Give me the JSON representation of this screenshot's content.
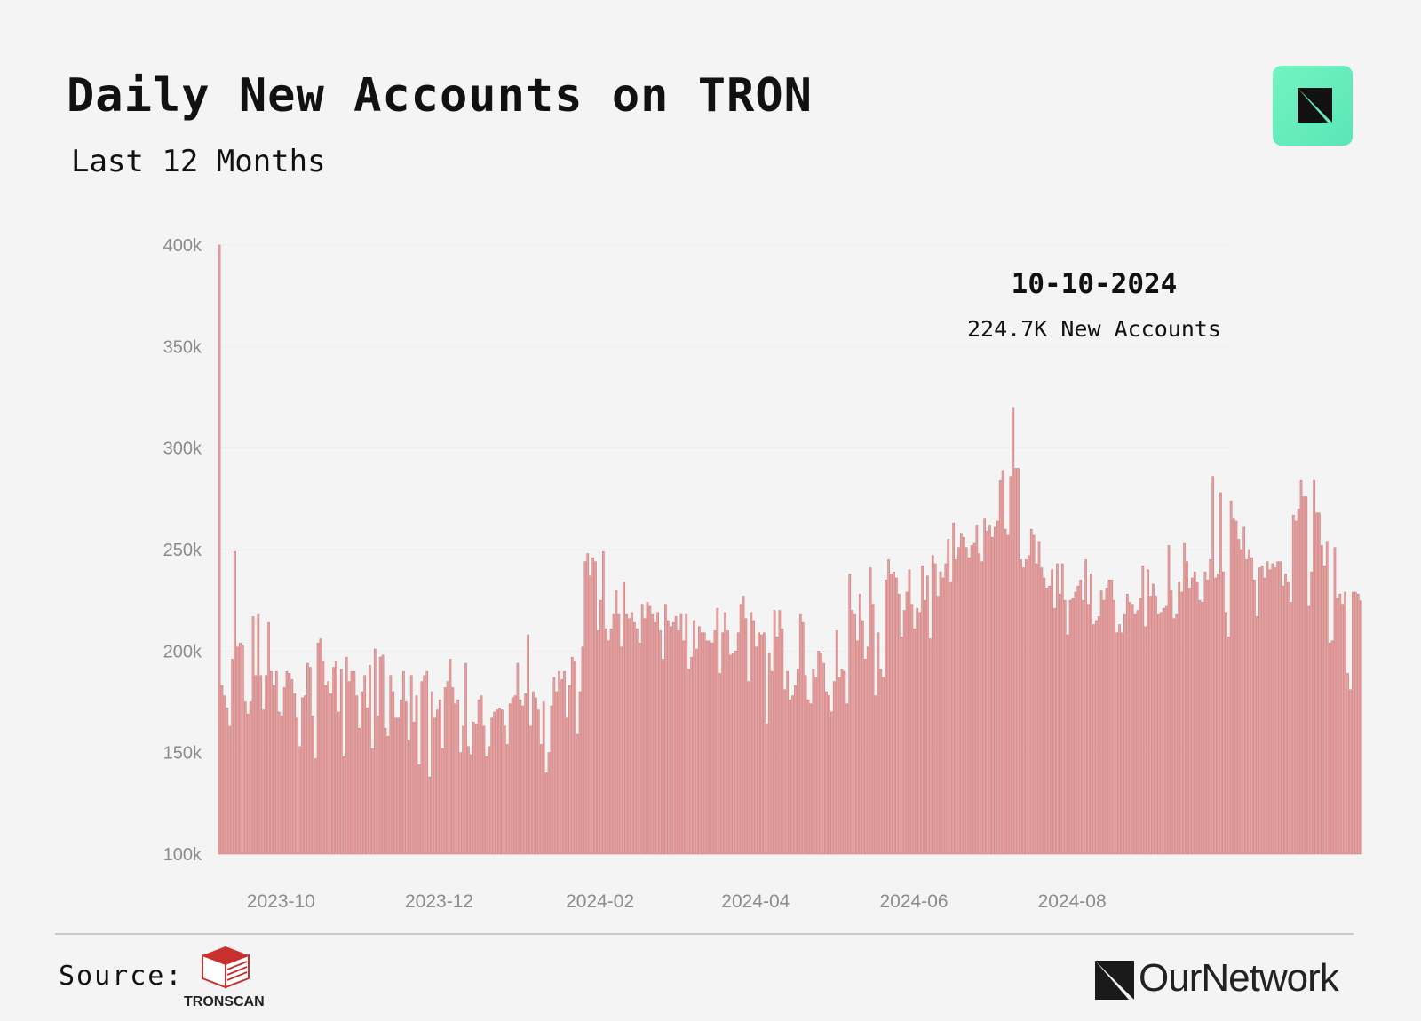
{
  "header": {
    "title": "Daily New Accounts on TRON",
    "subtitle": "Last 12 Months",
    "logo_icon": "ournetwork-badge-icon"
  },
  "annotation": {
    "date": "10-10-2024",
    "value_text": "224.7K New Accounts"
  },
  "footer": {
    "source_label": "Source:",
    "source_name": "TRONSCAN",
    "source_icon": "tronscan-cube-icon",
    "brand_name": "OurNetwork",
    "brand_icon": "ournetwork-mark-icon"
  },
  "colors": {
    "bar_fill": "#e4a3a3",
    "bar_stroke": "#d27c7c",
    "background": "#f4f4f4",
    "badge": "#6eefc0",
    "tronscan_red": "#c8302f"
  },
  "chart_data": {
    "type": "bar",
    "title": "Daily New Accounts on TRON",
    "subtitle": "Last 12 Months",
    "xlabel": "",
    "ylabel": "",
    "ylim": [
      100000,
      400000
    ],
    "yticks": [
      100000,
      150000,
      200000,
      250000,
      300000,
      350000,
      400000
    ],
    "ytick_labels": [
      "100k",
      "150k",
      "200k",
      "250k",
      "300k",
      "350k",
      "400k"
    ],
    "xtick_labels": [
      "2023-10",
      "2023-12",
      "2024-02",
      "2024-04",
      "2024-06",
      "2024-08"
    ],
    "xtick_dates": [
      "2023-10-01",
      "2023-12-01",
      "2024-02-01",
      "2024-04-01",
      "2024-06-01",
      "2024-08-01"
    ],
    "date_range": [
      "2023-09-16",
      "2024-10-10"
    ],
    "grid": false,
    "legend": "none",
    "values": [
      400000,
      183000,
      178000,
      172000,
      163000,
      196000,
      249000,
      202000,
      204000,
      203000,
      175000,
      169000,
      175000,
      217000,
      188000,
      218000,
      188000,
      171000,
      188000,
      214000,
      190000,
      183000,
      190000,
      170000,
      168000,
      182000,
      190000,
      189000,
      186000,
      179000,
      167000,
      153000,
      177000,
      178000,
      194000,
      192000,
      168000,
      147000,
      204000,
      206000,
      195000,
      183000,
      185000,
      179000,
      192000,
      195000,
      170000,
      191000,
      148000,
      197000,
      185000,
      190000,
      190000,
      178000,
      162000,
      180000,
      188000,
      172000,
      193000,
      152000,
      201000,
      168000,
      197000,
      198000,
      162000,
      158000,
      188000,
      180000,
      167000,
      167000,
      176000,
      190000,
      175000,
      156000,
      188000,
      165000,
      178000,
      144000,
      185000,
      188000,
      190000,
      138000,
      180000,
      167000,
      171000,
      176000,
      152000,
      182000,
      185000,
      196000,
      182000,
      174000,
      176000,
      150000,
      163000,
      194000,
      153000,
      149000,
      165000,
      164000,
      176000,
      178000,
      163000,
      148000,
      153000,
      167000,
      170000,
      171000,
      172000,
      171000,
      163000,
      154000,
      174000,
      177000,
      178000,
      194000,
      176000,
      173000,
      179000,
      208000,
      163000,
      180000,
      177000,
      171000,
      154000,
      175000,
      140000,
      150000,
      173000,
      187000,
      180000,
      190000,
      186000,
      190000,
      167000,
      183000,
      197000,
      195000,
      159000,
      180000,
      202000,
      244000,
      248000,
      237000,
      246000,
      244000,
      210000,
      225000,
      249000,
      211000,
      205000,
      211000,
      218000,
      230000,
      218000,
      202000,
      234000,
      218000,
      216000,
      219000,
      214000,
      211000,
      204000,
      223000,
      216000,
      224000,
      222000,
      218000,
      214000,
      219000,
      210000,
      196000,
      223000,
      215000,
      212000,
      214000,
      217000,
      210000,
      218000,
      205000,
      218000,
      191000,
      197000,
      215000,
      201000,
      212000,
      209000,
      209000,
      205000,
      205000,
      204000,
      210000,
      221000,
      189000,
      209000,
      219000,
      210000,
      198000,
      199000,
      200000,
      209000,
      223000,
      227000,
      216000,
      185000,
      219000,
      215000,
      202000,
      209000,
      208000,
      209000,
      164000,
      199000,
      190000,
      220000,
      207000,
      220000,
      211000,
      181000,
      190000,
      176000,
      178000,
      183000,
      191000,
      218000,
      214000,
      188000,
      176000,
      174000,
      191000,
      187000,
      200000,
      199000,
      194000,
      180000,
      178000,
      170000,
      185000,
      210000,
      187000,
      191000,
      190000,
      174000,
      238000,
      220000,
      218000,
      205000,
      228000,
      215000,
      196000,
      202000,
      241000,
      223000,
      178000,
      209000,
      191000,
      187000,
      235000,
      245000,
      238000,
      239000,
      236000,
      228000,
      207000,
      220000,
      229000,
      240000,
      223000,
      211000,
      221000,
      219000,
      242000,
      225000,
      237000,
      206000,
      247000,
      243000,
      227000,
      239000,
      236000,
      243000,
      255000,
      234000,
      263000,
      245000,
      251000,
      258000,
      256000,
      251000,
      246000,
      252000,
      253000,
      262000,
      248000,
      244000,
      265000,
      259000,
      262000,
      256000,
      261000,
      264000,
      284000,
      289000,
      260000,
      257000,
      286000,
      320000,
      290000,
      290000,
      245000,
      241000,
      245000,
      247000,
      260000,
      257000,
      243000,
      254000,
      241000,
      236000,
      231000,
      232000,
      240000,
      221000,
      243000,
      228000,
      243000,
      225000,
      208000,
      225000,
      226000,
      229000,
      232000,
      235000,
      225000,
      245000,
      223000,
      238000,
      213000,
      215000,
      217000,
      230000,
      225000,
      231000,
      235000,
      235000,
      225000,
      209000,
      213000,
      209000,
      218000,
      228000,
      224000,
      223000,
      218000,
      220000,
      226000,
      242000,
      212000,
      240000,
      227000,
      233000,
      227000,
      218000,
      219000,
      221000,
      222000,
      252000,
      230000,
      216000,
      218000,
      234000,
      229000,
      253000,
      244000,
      231000,
      236000,
      239000,
      234000,
      225000,
      224000,
      239000,
      235000,
      245000,
      286000,
      236000,
      238000,
      278000,
      239000,
      219000,
      207000,
      274000,
      265000,
      264000,
      255000,
      250000,
      261000,
      245000,
      250000,
      246000,
      235000,
      217000,
      241000,
      242000,
      236000,
      244000,
      240000,
      243000,
      241000,
      244000,
      244000,
      232000,
      238000,
      234000,
      224000,
      267000,
      264000,
      270000,
      284000,
      276000,
      276000,
      222000,
      239000,
      284000,
      268000,
      268000,
      252000,
      242000,
      254000,
      204000,
      205000,
      251000,
      226000,
      228000,
      223000,
      229000,
      189000,
      181000,
      229000,
      229000,
      228000,
      224700
    ]
  }
}
